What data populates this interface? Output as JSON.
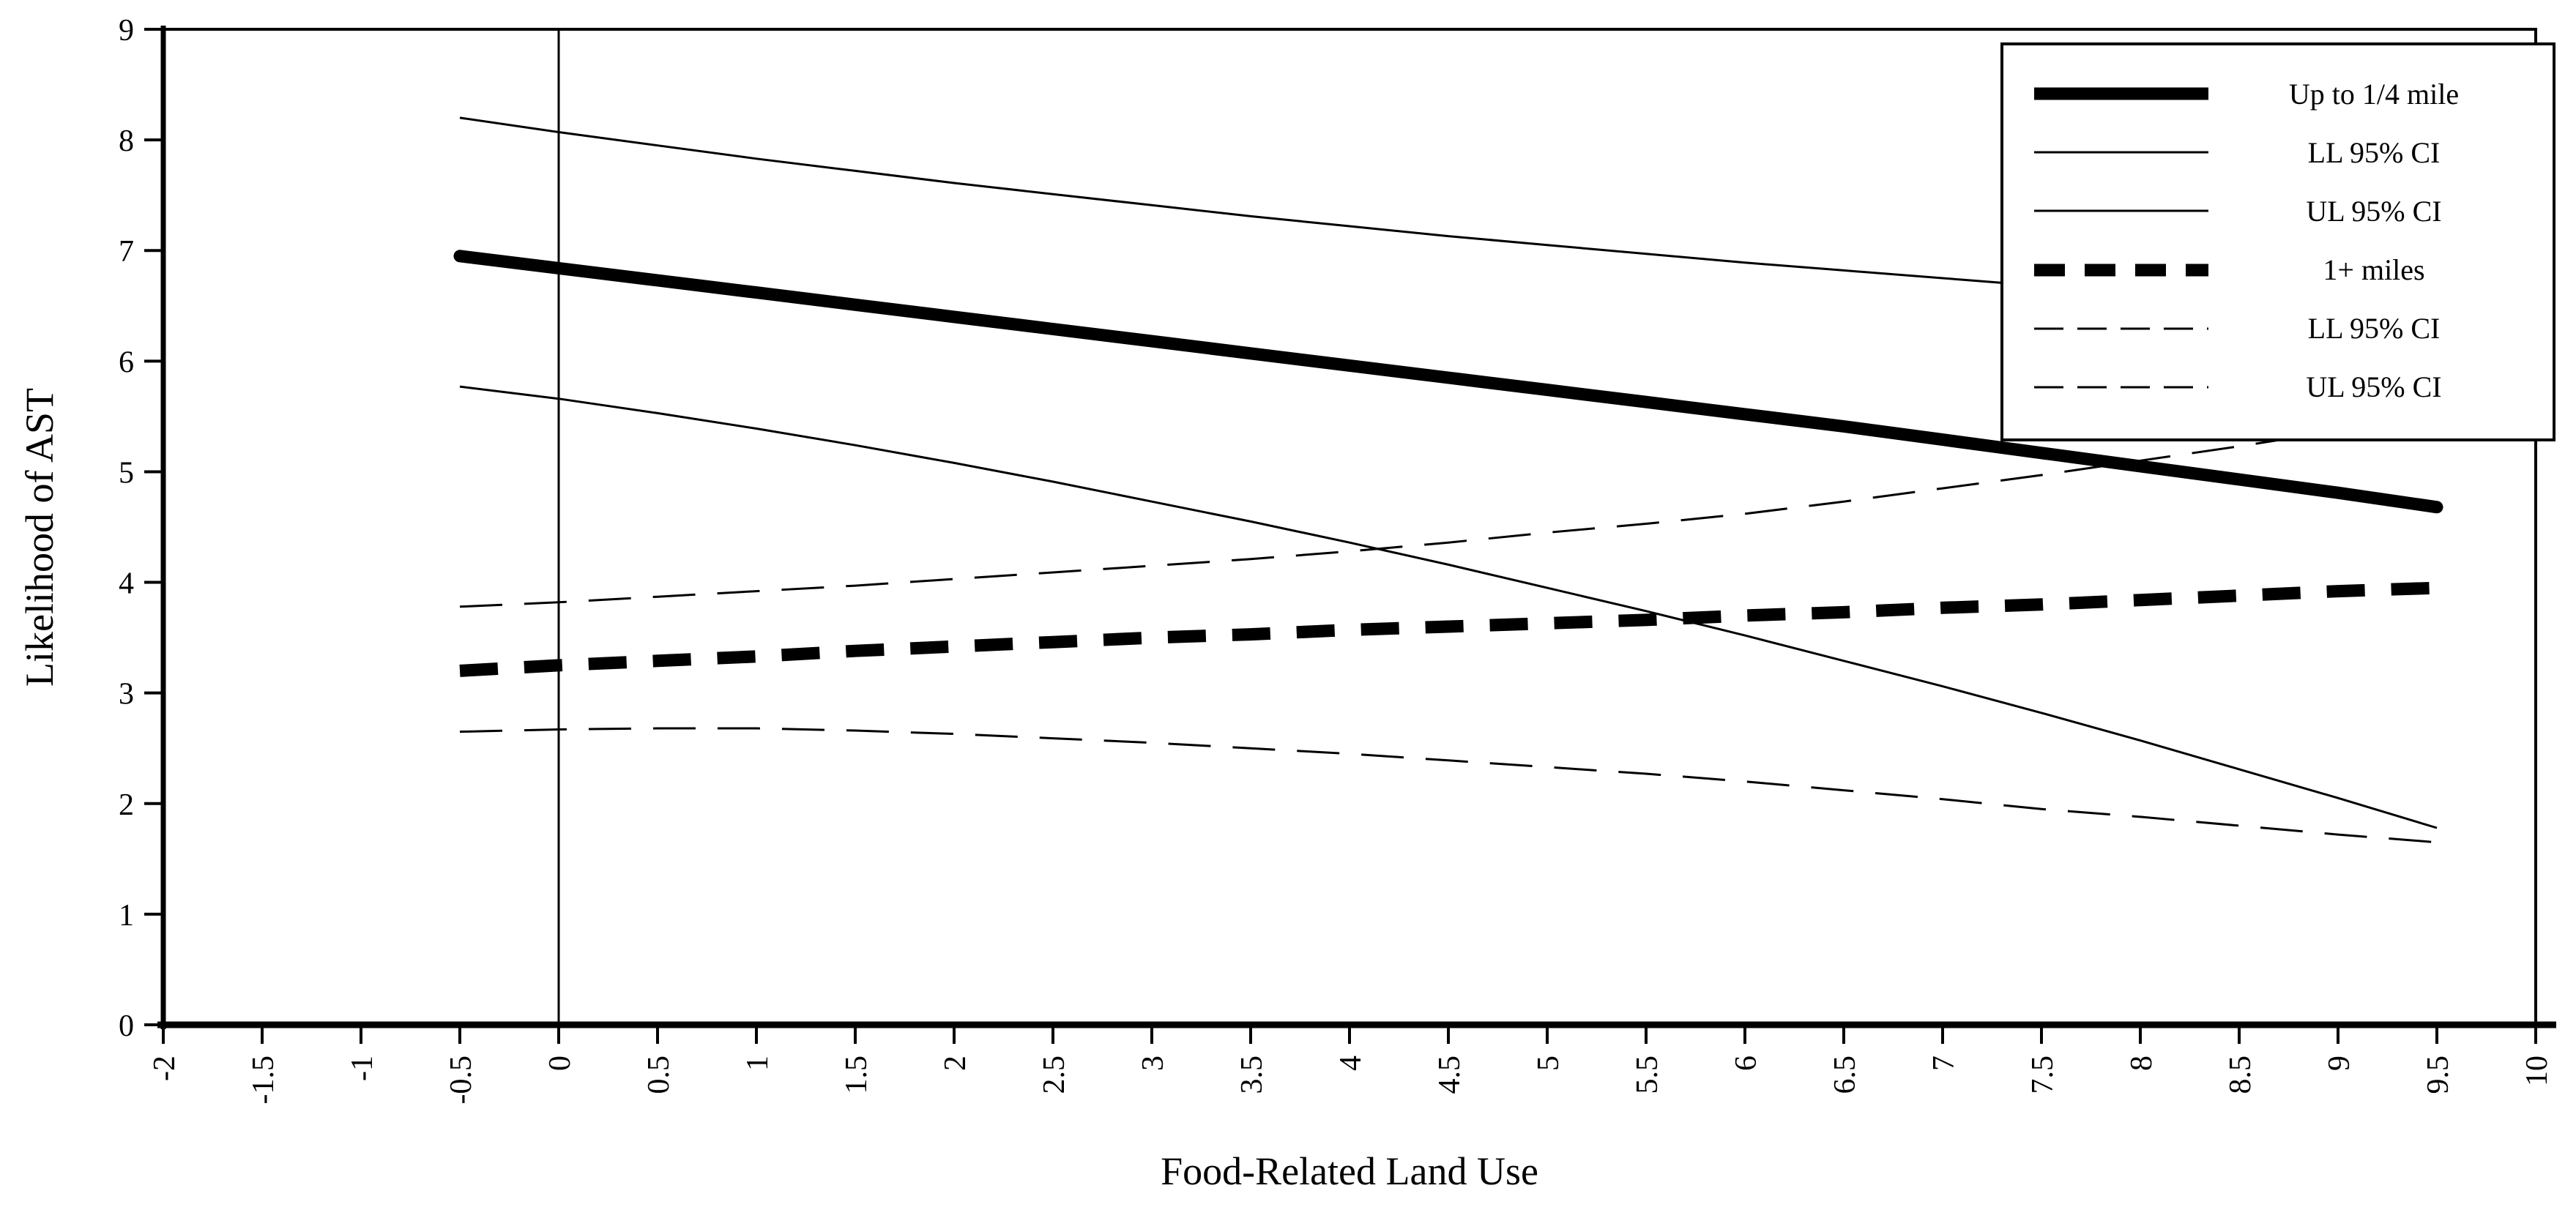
{
  "figure": {
    "background_color": "#ffffff",
    "ink_color": "#000000"
  },
  "y_axis": {
    "title": "Likelihood of AST",
    "tick_labels": [
      "0",
      "1",
      "2",
      "3",
      "4",
      "5",
      "6",
      "7",
      "8",
      "9"
    ]
  },
  "x_axis": {
    "title": "Food-Related Land Use",
    "tick_labels": [
      "-2",
      "-1.5",
      "-1",
      "-0.5",
      "0",
      "0.5",
      "1",
      "1.5",
      "2",
      "2.5",
      "3",
      "3.5",
      "4",
      "4.5",
      "5",
      "5.5",
      "6",
      "6.5",
      "7",
      "7.5",
      "8",
      "8.5",
      "9",
      "9.5",
      "10"
    ]
  },
  "legend": {
    "entries": [
      {
        "label": "Up to 1/4 mile",
        "line": "thick-solid"
      },
      {
        "label": "LL 95% CI",
        "line": "thin-solid"
      },
      {
        "label": "UL 95% CI",
        "line": "thin-solid"
      },
      {
        "label": "1+ miles",
        "line": "thick-dashed"
      },
      {
        "label": "LL 95% CI",
        "line": "thin-dashed"
      },
      {
        "label": "UL 95% CI",
        "line": "thin-dashed"
      }
    ]
  },
  "chart_data": {
    "type": "line",
    "title": "",
    "xlabel": "Food-Related Land Use",
    "ylabel": "Likelihood of AST",
    "xlim": [
      -2,
      10
    ],
    "ylim": [
      0,
      9
    ],
    "x_tick_step": 0.5,
    "y_tick_step": 1,
    "grid": false,
    "legend_position": "top-right",
    "reference_line_x": 0,
    "line_color": "#000000",
    "x": [
      -0.5,
      0,
      0.5,
      1,
      1.5,
      2,
      2.5,
      3,
      3.5,
      4,
      4.5,
      5,
      5.5,
      6,
      6.5,
      7,
      7.5,
      8,
      8.5,
      9,
      9.5
    ],
    "series": [
      {
        "name": "Up to 1/4 mile",
        "line": "thick-solid",
        "values": [
          6.95,
          6.84,
          6.73,
          6.62,
          6.51,
          6.4,
          6.29,
          6.18,
          6.07,
          5.96,
          5.85,
          5.74,
          5.63,
          5.52,
          5.41,
          5.29,
          5.17,
          5.05,
          4.93,
          4.81,
          4.68
        ]
      },
      {
        "name": "LL 95% CI",
        "line": "thin-solid",
        "values": [
          5.77,
          5.66,
          5.53,
          5.39,
          5.24,
          5.08,
          4.91,
          4.73,
          4.55,
          4.36,
          4.16,
          3.95,
          3.74,
          3.52,
          3.29,
          3.06,
          2.82,
          2.57,
          2.31,
          2.05,
          1.78
        ]
      },
      {
        "name": "UL 95% CI",
        "line": "thin-solid",
        "values": [
          8.2,
          8.07,
          7.95,
          7.83,
          7.72,
          7.61,
          7.51,
          7.41,
          7.31,
          7.22,
          7.13,
          7.05,
          6.97,
          6.89,
          6.82,
          6.75,
          6.68,
          6.62,
          6.56,
          6.5,
          6.45
        ]
      },
      {
        "name": "1+ miles",
        "line": "thick-dashed",
        "values": [
          3.2,
          3.25,
          3.29,
          3.33,
          3.38,
          3.42,
          3.46,
          3.5,
          3.53,
          3.57,
          3.6,
          3.63,
          3.66,
          3.7,
          3.73,
          3.77,
          3.8,
          3.84,
          3.88,
          3.92,
          3.95
        ]
      },
      {
        "name": "LL 95% CI",
        "line": "thin-dashed",
        "values": [
          2.65,
          2.67,
          2.68,
          2.68,
          2.66,
          2.63,
          2.59,
          2.55,
          2.5,
          2.45,
          2.39,
          2.33,
          2.27,
          2.2,
          2.12,
          2.04,
          1.95,
          1.88,
          1.8,
          1.72,
          1.65
        ]
      },
      {
        "name": "UL 95% CI",
        "line": "thin-dashed",
        "values": [
          3.78,
          3.82,
          3.87,
          3.92,
          3.97,
          4.03,
          4.09,
          4.15,
          4.21,
          4.28,
          4.36,
          4.45,
          4.53,
          4.62,
          4.73,
          4.85,
          4.97,
          5.1,
          5.23,
          5.37,
          5.5
        ]
      }
    ]
  }
}
